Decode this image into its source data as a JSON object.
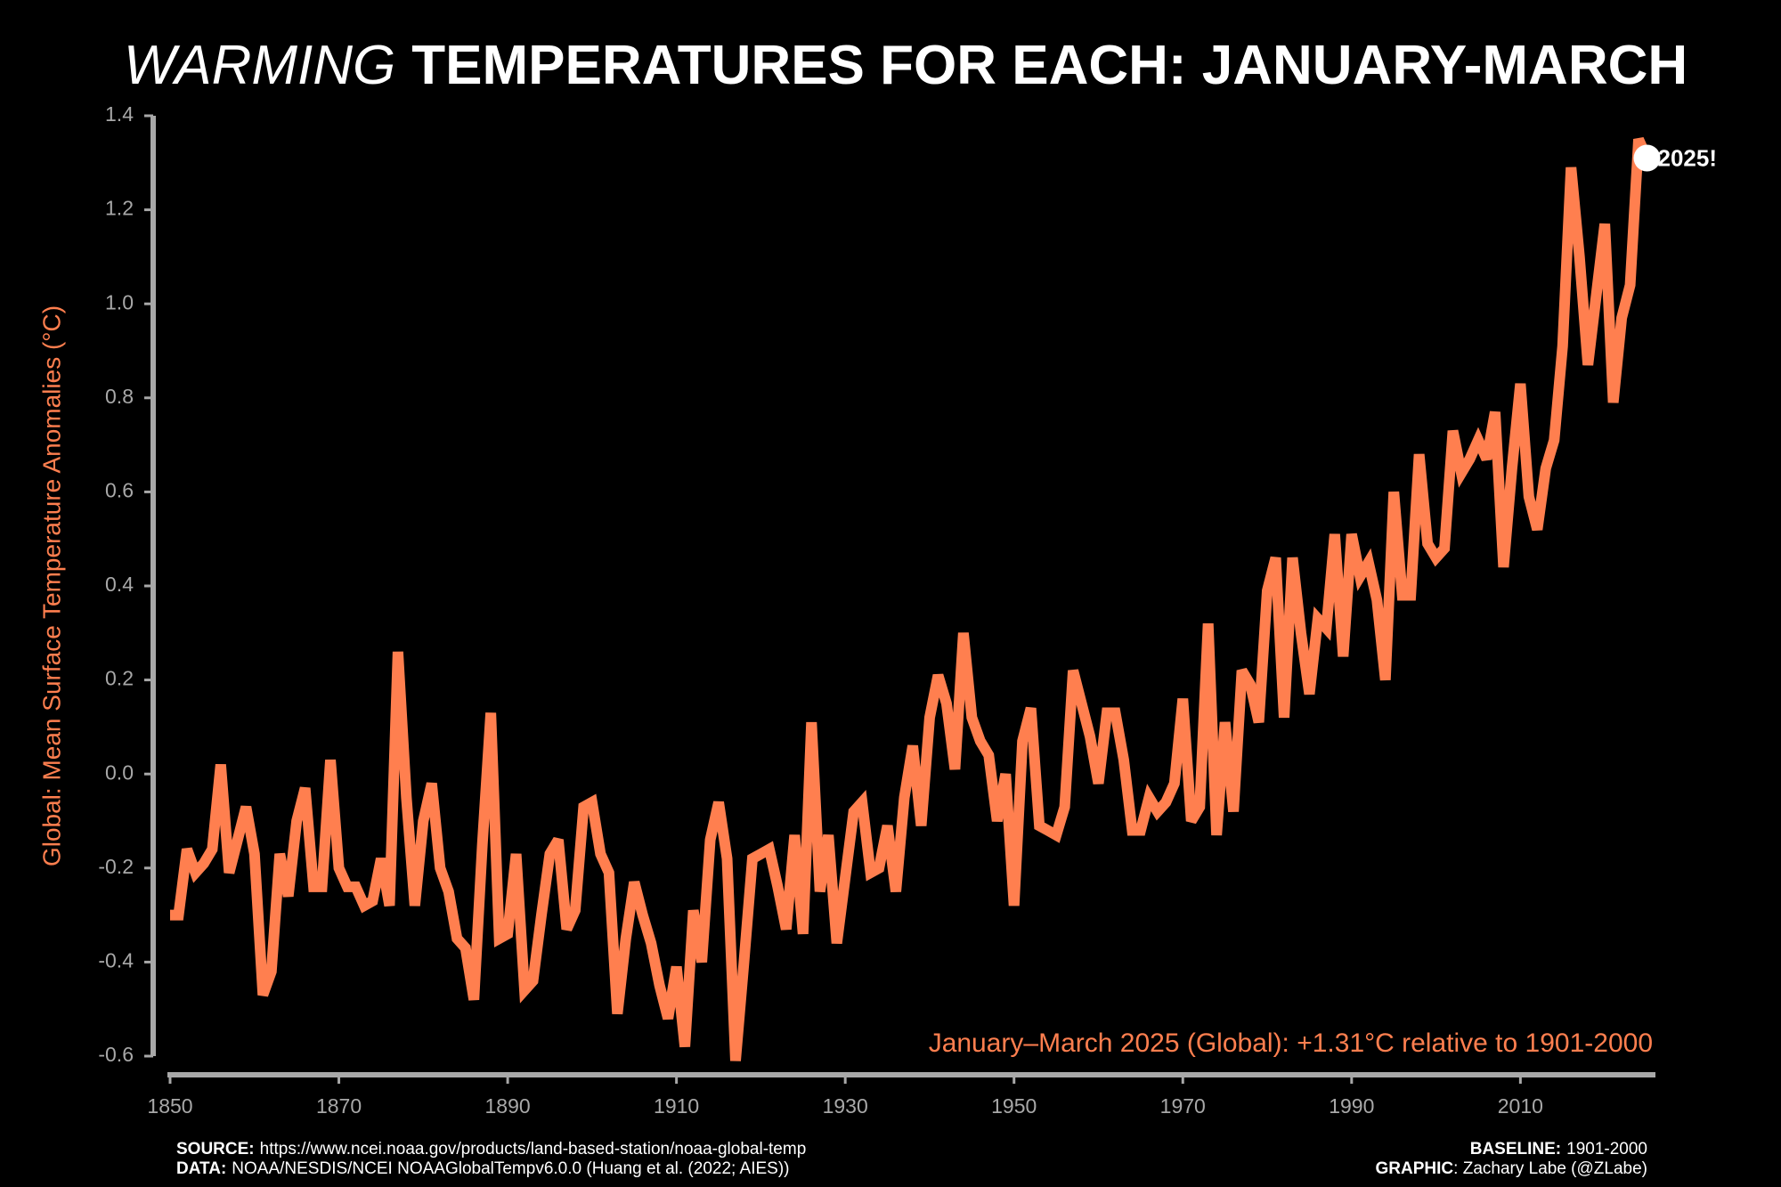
{
  "chart_data": {
    "type": "line",
    "title_italic": "WARMING",
    "title": "TEMPERATURES FOR EACH: JANUARY-MARCH",
    "ylabel": "Global: Mean Surface Temperature Anomalies (°C)",
    "annotation": "January–March 2025 (Global): +1.31°C relative to 1901-2000",
    "point_label": "2025!",
    "color": "#ff7f4f",
    "x": [
      1850,
      1851,
      1852,
      1853,
      1854,
      1855,
      1856,
      1857,
      1858,
      1859,
      1860,
      1861,
      1862,
      1863,
      1864,
      1865,
      1866,
      1867,
      1868,
      1869,
      1870,
      1871,
      1872,
      1873,
      1874,
      1875,
      1876,
      1877,
      1878,
      1879,
      1880,
      1881,
      1882,
      1883,
      1884,
      1885,
      1886,
      1887,
      1888,
      1889,
      1890,
      1891,
      1892,
      1893,
      1894,
      1895,
      1896,
      1897,
      1898,
      1899,
      1900,
      1901,
      1902,
      1903,
      1904,
      1905,
      1906,
      1907,
      1908,
      1909,
      1910,
      1911,
      1912,
      1913,
      1914,
      1915,
      1916,
      1917,
      1918,
      1919,
      1920,
      1921,
      1922,
      1923,
      1924,
      1925,
      1926,
      1927,
      1928,
      1929,
      1930,
      1931,
      1932,
      1933,
      1934,
      1935,
      1936,
      1937,
      1938,
      1939,
      1940,
      1941,
      1942,
      1943,
      1944,
      1945,
      1946,
      1947,
      1948,
      1949,
      1950,
      1951,
      1952,
      1953,
      1954,
      1955,
      1956,
      1957,
      1958,
      1959,
      1960,
      1961,
      1962,
      1963,
      1964,
      1965,
      1966,
      1967,
      1968,
      1969,
      1970,
      1971,
      1972,
      1973,
      1974,
      1975,
      1976,
      1977,
      1978,
      1979,
      1980,
      1981,
      1982,
      1983,
      1984,
      1985,
      1986,
      1987,
      1988,
      1989,
      1990,
      1991,
      1992,
      1993,
      1994,
      1995,
      1996,
      1997,
      1998,
      1999,
      2000,
      2001,
      2002,
      2003,
      2004,
      2005,
      2006,
      2007,
      2008,
      2009,
      2010,
      2011,
      2012,
      2013,
      2014,
      2015,
      2016,
      2017,
      2018,
      2019,
      2020,
      2021,
      2022,
      2023,
      2024,
      2025
    ],
    "values": [
      -0.3,
      -0.3,
      -0.16,
      -0.21,
      -0.19,
      -0.16,
      0.02,
      -0.21,
      -0.14,
      -0.07,
      -0.17,
      -0.47,
      -0.42,
      -0.17,
      -0.26,
      -0.1,
      -0.03,
      -0.24,
      -0.24,
      0.03,
      -0.2,
      -0.24,
      -0.24,
      -0.28,
      -0.27,
      -0.18,
      -0.28,
      0.26,
      -0.05,
      -0.28,
      -0.1,
      -0.02,
      -0.2,
      -0.25,
      -0.35,
      -0.37,
      -0.48,
      -0.15,
      0.13,
      -0.35,
      -0.34,
      -0.17,
      -0.46,
      -0.44,
      -0.3,
      -0.17,
      -0.14,
      -0.33,
      -0.29,
      -0.07,
      -0.06,
      -0.17,
      -0.21,
      -0.51,
      -0.35,
      -0.23,
      -0.3,
      -0.36,
      -0.45,
      -0.52,
      -0.41,
      -0.58,
      -0.29,
      -0.4,
      -0.14,
      -0.06,
      -0.18,
      -0.61,
      -0.4,
      -0.18,
      -0.17,
      -0.16,
      -0.24,
      -0.33,
      -0.13,
      -0.34,
      0.11,
      -0.25,
      -0.13,
      -0.36,
      -0.22,
      -0.08,
      -0.06,
      -0.21,
      -0.2,
      -0.11,
      -0.25,
      -0.05,
      0.06,
      -0.11,
      0.12,
      0.21,
      0.15,
      0.01,
      0.3,
      0.12,
      0.07,
      0.04,
      -0.1,
      0.0,
      -0.28,
      0.07,
      0.14,
      -0.11,
      -0.12,
      -0.13,
      -0.07,
      0.22,
      0.15,
      0.08,
      -0.02,
      0.13,
      0.13,
      0.03,
      -0.12,
      -0.12,
      -0.05,
      -0.08,
      -0.06,
      -0.02,
      0.16,
      -0.1,
      -0.07,
      0.32,
      -0.13,
      0.11,
      -0.08,
      0.22,
      0.19,
      0.11,
      0.39,
      0.46,
      0.12,
      0.46,
      0.3,
      0.17,
      0.33,
      0.31,
      0.51,
      0.25,
      0.51,
      0.42,
      0.45,
      0.37,
      0.2,
      0.6,
      0.38,
      0.38,
      0.68,
      0.49,
      0.46,
      0.48,
      0.73,
      0.64,
      0.67,
      0.71,
      0.67,
      0.77,
      0.44,
      0.65,
      0.83,
      0.59,
      0.52,
      0.65,
      0.71,
      0.91,
      1.29,
      1.1,
      0.87,
      1.02,
      1.17,
      0.79,
      0.97,
      1.04,
      1.35,
      1.31
    ],
    "xlim": [
      1850,
      2026
    ],
    "xticks": [
      1850,
      1870,
      1890,
      1910,
      1930,
      1950,
      1970,
      1990,
      2010
    ],
    "ylim": [
      -0.6,
      1.4
    ],
    "yticks": [
      -0.6,
      -0.4,
      -0.2,
      {
        "value": 0,
        "label": "0.0"
      },
      0.2,
      0.4,
      0.6,
      0.8,
      {
        "value": 1,
        "label": "1.0"
      },
      1.2,
      1.4
    ],
    "footer": {
      "source_label": "SOURCE:",
      "source": "https://www.ncei.noaa.gov/products/land-based-station/noaa-global-temp",
      "data_label": "DATA:",
      "data": "NOAA/NESDIS/NCEI NOAAGlobalTempv6.0.0 (Huang et al. (2022; AIES))",
      "baseline_label": "BASELINE:",
      "baseline": "1901-2000",
      "graphic_label": "GRAPHIC",
      "graphic": ": Zachary Labe (@ZLabe)"
    }
  }
}
